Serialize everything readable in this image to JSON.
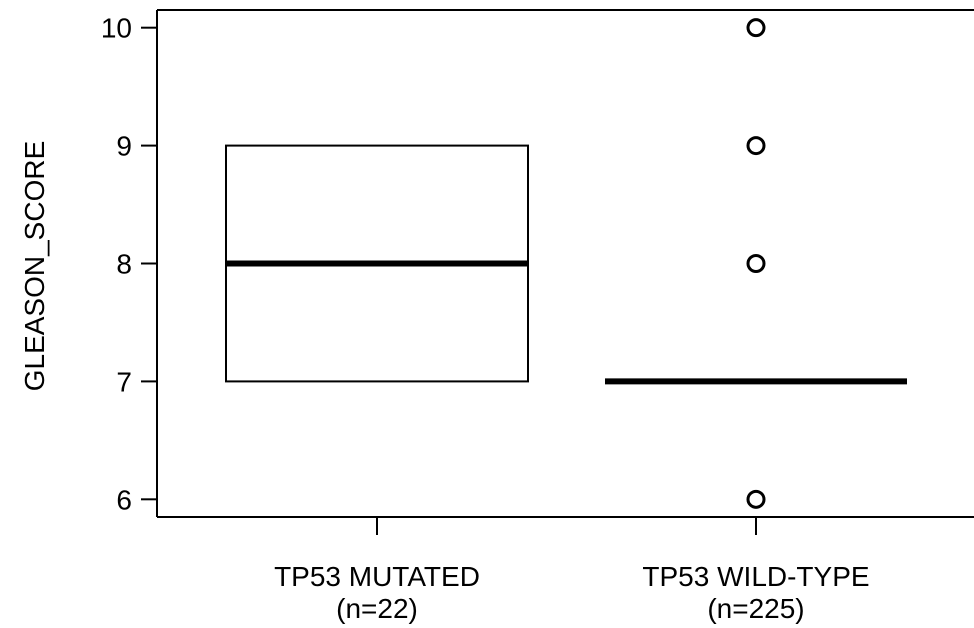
{
  "chart_data": {
    "type": "box",
    "ylabel": "GLEASON_SCORE",
    "ylim": [
      5.85,
      10.15
    ],
    "yticks": [
      6,
      7,
      8,
      9,
      10
    ],
    "grid": false,
    "legend": "none",
    "categories": [
      {
        "label_line1": "TP53 MUTATED",
        "label_line2": "(n=22)"
      },
      {
        "label_line1": "TP53 WILD-TYPE",
        "label_line2": "(n=225)"
      }
    ],
    "boxes": [
      {
        "q1": 7,
        "median": 8,
        "q3": 9,
        "whisker_low": 7,
        "whisker_high": 9,
        "outliers": []
      },
      {
        "q1": 7,
        "median": 7,
        "q3": 7,
        "whisker_low": 7,
        "whisker_high": 7,
        "outliers": [
          6,
          8,
          9,
          10
        ]
      }
    ]
  }
}
